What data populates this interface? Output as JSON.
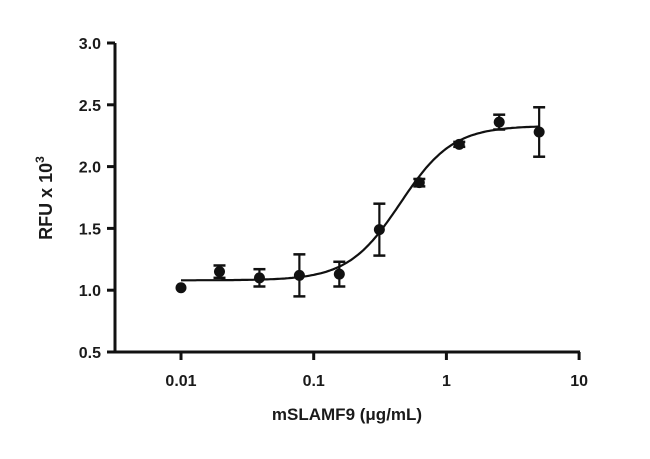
{
  "chart_data": {
    "type": "scatter",
    "title": "",
    "xlabel": "mSLAMF9 (μg/mL)",
    "ylabel": "RFU x 10",
    "ylabel_superscript": "3",
    "xscale": "log",
    "xlim": [
      0.0035,
      10
    ],
    "ylim": [
      0.5,
      3.0
    ],
    "xticks": [
      0.01,
      0.1,
      1,
      10
    ],
    "xtick_labels": [
      "0.01",
      "0.1",
      "1",
      "10"
    ],
    "yticks": [
      0.5,
      1.0,
      1.5,
      2.0,
      2.5,
      3.0
    ],
    "ytick_labels": [
      "0.5",
      "1.0",
      "1.5",
      "2.0",
      "2.5",
      "3.0"
    ],
    "grid": false,
    "series": [
      {
        "x": [
          0.01,
          0.0195,
          0.039,
          0.078,
          0.156,
          0.3125,
          0.625,
          1.25,
          2.5,
          5
        ],
        "y": [
          1.02,
          1.15,
          1.1,
          1.12,
          1.13,
          1.49,
          1.87,
          2.18,
          2.36,
          2.28
        ],
        "error": [
          0,
          0.05,
          0.07,
          0.17,
          0.1,
          0.21,
          0.03,
          0.02,
          0.06,
          0.2
        ]
      }
    ],
    "fit": {
      "type": "4PL",
      "bottom": 1.08,
      "top": 2.33,
      "ec50": 0.45,
      "hill": 2.2
    },
    "color": "#111111"
  }
}
